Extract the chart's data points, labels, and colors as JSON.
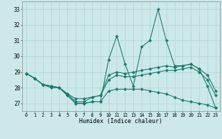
{
  "xlabel": "Humidex (Indice chaleur)",
  "x": [
    0,
    1,
    2,
    3,
    4,
    5,
    6,
    7,
    8,
    9,
    10,
    11,
    12,
    13,
    14,
    15,
    16,
    17,
    18,
    19,
    20,
    21,
    22,
    23
  ],
  "line1": [
    28.9,
    28.6,
    28.2,
    28.0,
    28.0,
    27.5,
    27.0,
    27.0,
    27.1,
    27.1,
    29.8,
    31.3,
    29.5,
    28.1,
    30.6,
    31.0,
    33.0,
    31.0,
    29.4,
    29.4,
    29.5,
    29.2,
    28.1,
    26.7
  ],
  "line2": [
    28.9,
    28.6,
    28.2,
    28.1,
    28.0,
    27.6,
    27.3,
    27.3,
    27.4,
    27.5,
    28.8,
    29.0,
    28.9,
    29.0,
    29.1,
    29.2,
    29.3,
    29.4,
    29.3,
    29.4,
    29.5,
    29.2,
    28.8,
    27.8
  ],
  "line3": [
    28.9,
    28.6,
    28.2,
    28.1,
    28.0,
    27.6,
    27.1,
    27.1,
    27.4,
    27.5,
    28.5,
    28.8,
    28.7,
    28.7,
    28.8,
    28.9,
    29.0,
    29.1,
    29.1,
    29.2,
    29.3,
    29.0,
    28.5,
    27.5
  ],
  "line4": [
    28.9,
    28.6,
    28.2,
    28.1,
    28.0,
    27.5,
    27.0,
    27.0,
    27.1,
    27.1,
    27.8,
    27.9,
    27.9,
    27.9,
    27.9,
    27.8,
    27.7,
    27.6,
    27.4,
    27.2,
    27.1,
    27.0,
    26.9,
    26.7
  ],
  "line_color": "#1a7a6e",
  "bg_color": "#cce8e8",
  "grid_color": "#afd4d4",
  "ylim": [
    26.5,
    33.5
  ],
  "yticks": [
    27,
    28,
    29,
    30,
    31,
    32,
    33
  ],
  "xlim": [
    -0.5,
    23.5
  ]
}
